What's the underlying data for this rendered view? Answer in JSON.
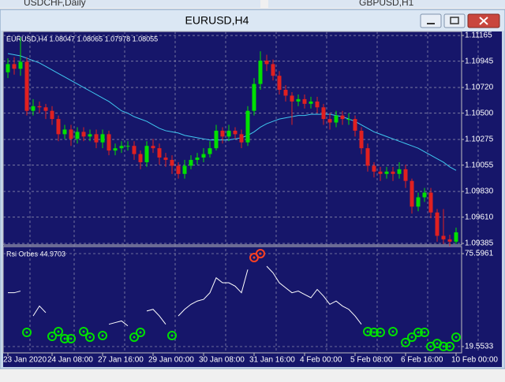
{
  "background_tabs": [
    "USDCHF,Daily",
    "GBPUSD,H1"
  ],
  "window": {
    "title": "EURUSD,H4"
  },
  "chart_data": [
    {
      "type": "candlestick",
      "title": "EURUSD,H4  1.08047 1.08065 1.07978 1.08055",
      "categories": [
        "23 Jan 2020",
        null,
        null,
        null,
        null,
        null,
        null,
        "24 Jan 08:00",
        null,
        null,
        null,
        null,
        null,
        null,
        null,
        "27 Jan 16:00",
        null,
        null,
        null,
        null,
        null,
        null,
        null,
        "29 Jan 00:00",
        null,
        null,
        null,
        null,
        null,
        null,
        null,
        "30 Jan 08:00",
        null,
        null,
        null,
        null,
        null,
        null,
        null,
        "31 Jan 16:00",
        null,
        null,
        null,
        null,
        null,
        null,
        null,
        "4 Feb 00:00",
        null,
        null,
        null,
        null,
        null,
        null,
        null,
        "5 Feb 08:00",
        null,
        null,
        null,
        null,
        null,
        null,
        null,
        "6 Feb 16:00",
        null,
        null,
        null,
        null,
        null,
        null,
        null,
        "10 Feb 00:00"
      ],
      "open": [
        1.1085,
        1.1092,
        1.1088,
        1.1094,
        1.1052,
        1.1056,
        1.1055,
        1.1052,
        1.1045,
        1.1032,
        1.1036,
        1.1028,
        1.1034,
        1.103,
        1.1032,
        1.1025,
        1.1032,
        1.1018,
        1.102,
        1.1022,
        1.1022,
        1.1015,
        1.1008,
        1.1022,
        1.102,
        1.1012,
        1.101,
        1.1005,
        1.0998,
        1.1005,
        1.101,
        1.1012,
        1.1015,
        1.102,
        1.1035,
        1.103,
        1.1035,
        1.1032,
        1.1025,
        1.1052,
        1.1075,
        1.1095,
        1.1092,
        1.1082,
        1.107,
        1.1065,
        1.106,
        1.1062,
        1.1058,
        1.106,
        1.1055,
        1.1045,
        1.1042,
        1.1048,
        1.1045,
        1.1045,
        1.1035,
        1.102,
        1.1005,
        1.1,
        1.0998,
        1.1,
        1.0998,
        1.1002,
        1.0992,
        1.097,
        1.0978,
        1.0982,
        1.0965,
        1.0945,
        1.0942,
        1.094
      ],
      "high": [
        1.1097,
        1.1098,
        1.1115,
        1.1098,
        1.1062,
        1.106,
        1.1058,
        1.1056,
        1.1048,
        1.104,
        1.104,
        1.1038,
        1.1038,
        1.1036,
        1.1036,
        1.1036,
        1.1035,
        1.1024,
        1.1026,
        1.1026,
        1.1026,
        1.1018,
        1.1026,
        1.1028,
        1.1024,
        1.1016,
        1.1014,
        1.1008,
        1.101,
        1.1014,
        1.1016,
        1.102,
        1.1026,
        1.104,
        1.1038,
        1.104,
        1.1038,
        1.1036,
        1.1056,
        1.108,
        1.1103,
        1.11,
        1.1096,
        1.1086,
        1.1074,
        1.1068,
        1.1066,
        1.1066,
        1.1064,
        1.1064,
        1.1058,
        1.105,
        1.1052,
        1.1052,
        1.105,
        1.1048,
        1.1038,
        1.1024,
        1.1008,
        1.1004,
        1.1004,
        1.1004,
        1.1008,
        1.1006,
        1.0994,
        1.0982,
        1.0986,
        1.0986,
        1.0968,
        1.0968,
        1.0946,
        1.0952
      ],
      "low": [
        1.108,
        1.1083,
        1.1082,
        1.1048,
        1.1048,
        1.105,
        1.1045,
        1.104,
        1.1026,
        1.1028,
        1.1022,
        1.1024,
        1.1026,
        1.1026,
        1.102,
        1.102,
        1.1014,
        1.1014,
        1.1016,
        1.1018,
        1.101,
        1.1002,
        1.1004,
        1.1016,
        1.1006,
        1.1004,
        1.0998,
        1.0994,
        1.0994,
        1.1002,
        1.1006,
        1.1008,
        1.1012,
        1.1018,
        1.1024,
        1.1026,
        1.1028,
        1.102,
        1.1022,
        1.1048,
        1.107,
        1.1086,
        1.1078,
        1.1066,
        1.106,
        1.104,
        1.1056,
        1.1054,
        1.1054,
        1.105,
        1.104,
        1.1036,
        1.1038,
        1.104,
        1.104,
        1.103,
        1.1015,
        1.1,
        1.0995,
        1.0992,
        1.0994,
        1.0992,
        1.0994,
        1.0986,
        1.0964,
        1.0966,
        1.0974,
        1.096,
        1.094,
        1.0938,
        1.0936,
        1.0938
      ],
      "close": [
        1.1092,
        1.1088,
        1.1094,
        1.1052,
        1.1056,
        1.1055,
        1.1052,
        1.1045,
        1.1032,
        1.1036,
        1.1028,
        1.1034,
        1.103,
        1.1032,
        1.1025,
        1.1032,
        1.1018,
        1.102,
        1.1022,
        1.1022,
        1.1015,
        1.1008,
        1.1022,
        1.102,
        1.1012,
        1.101,
        1.1005,
        1.0998,
        1.1005,
        1.101,
        1.1012,
        1.1015,
        1.102,
        1.1035,
        1.103,
        1.1035,
        1.1032,
        1.1025,
        1.1052,
        1.1075,
        1.1095,
        1.1092,
        1.1082,
        1.107,
        1.1065,
        1.106,
        1.1062,
        1.1058,
        1.106,
        1.1055,
        1.1045,
        1.1042,
        1.1048,
        1.1045,
        1.1045,
        1.1035,
        1.102,
        1.1005,
        1.1,
        1.0998,
        1.1,
        1.0998,
        1.1002,
        1.0992,
        1.097,
        1.0978,
        1.0982,
        1.0965,
        1.0945,
        1.0942,
        1.094,
        1.0948
      ],
      "up_color": "#00e000",
      "down_color": "#e02020",
      "series": [
        {
          "color": "#40c8f0",
          "values": [
            1.1101,
            1.11,
            1.1099,
            1.1097,
            1.1095,
            1.1093,
            1.109,
            1.1087,
            1.1084,
            1.1081,
            1.1078,
            1.1075,
            1.1072,
            1.1069,
            1.1066,
            1.1063,
            1.106,
            1.1056,
            1.1052,
            1.105,
            1.1047,
            1.1045,
            1.1043,
            1.104,
            1.1037,
            1.1035,
            1.1034,
            1.1033,
            1.1031,
            1.103,
            1.1029,
            1.1028,
            1.1027,
            1.1027,
            1.1027,
            1.1027,
            1.1028,
            1.1029,
            1.1031,
            1.1034,
            1.1038,
            1.1041,
            1.1043,
            1.1045,
            1.1046,
            1.1047,
            1.1048,
            1.1048,
            1.1049,
            1.1049,
            1.1049,
            1.1049,
            1.1048,
            1.1047,
            1.1045,
            1.1043,
            1.104,
            1.1037,
            1.1034,
            1.1032,
            1.103,
            1.1028,
            1.1026,
            1.1024,
            1.1022,
            1.102,
            1.1017,
            1.1014,
            1.1011,
            1.1008,
            1.1004,
            1.1001
          ]
        }
      ],
      "ylim": [
        1.09372,
        1.11199
      ],
      "yticks": [
        1.11165,
        1.10945,
        {
          "value": 1.1072,
          "label": "1.10720"
        },
        {
          "value": 1.105,
          "label": "1.10500"
        },
        1.10275,
        1.10055,
        {
          "value": 1.0983,
          "label": "1.09830"
        },
        {
          "value": 1.0961,
          "label": "1.09610"
        },
        1.09385
      ],
      "grid": true
    },
    {
      "type": "line",
      "title": "Rsi Orbes 44.9703",
      "series": [
        {
          "color": "#ffffff",
          "values": [
            52,
            52,
            53,
            null,
            38,
            44,
            40,
            null,
            null,
            null,
            null,
            34,
            null,
            null,
            33,
            null,
            33,
            34,
            35,
            32,
            null,
            null,
            41,
            42,
            38,
            33,
            null,
            38,
            42,
            45,
            47,
            48,
            52,
            61,
            58,
            58,
            56,
            52,
            66,
            null,
            null,
            68,
            64,
            58,
            55,
            52,
            53,
            51,
            49,
            54,
            50,
            45,
            47,
            44,
            42,
            38,
            33,
            null,
            null,
            null,
            30,
            null,
            31,
            null,
            null,
            null,
            null,
            null,
            null,
            null,
            null,
            null
          ]
        },
        {
          "color": "#00e000",
          "marker": "circle",
          "values": [
            null,
            null,
            null,
            28.1,
            null,
            null,
            null,
            25.7,
            28.6,
            24.3,
            24.3,
            null,
            28.6,
            25.2,
            null,
            26.2,
            null,
            null,
            null,
            null,
            25.2,
            28.1,
            null,
            null,
            null,
            null,
            26.2,
            null,
            null,
            null,
            null,
            null,
            null,
            null,
            null,
            null,
            null,
            null,
            null,
            null,
            null,
            null,
            null,
            null,
            null,
            null,
            null,
            null,
            null,
            null,
            null,
            null,
            null,
            null,
            null,
            null,
            null,
            28.6,
            28.1,
            28.1,
            null,
            28.6,
            null,
            22.0,
            25.2,
            28.1,
            28.1,
            19.6,
            21.4,
            19.6,
            19.6,
            25.2
          ]
        },
        {
          "color": "#ff4020",
          "marker": "circle",
          "values": [
            null,
            null,
            null,
            null,
            null,
            null,
            null,
            null,
            null,
            null,
            null,
            null,
            null,
            null,
            null,
            null,
            null,
            null,
            null,
            null,
            null,
            null,
            null,
            null,
            null,
            null,
            null,
            null,
            null,
            null,
            null,
            null,
            null,
            null,
            null,
            null,
            null,
            null,
            null,
            73.2,
            75.6,
            null,
            null,
            null,
            null,
            null,
            null,
            null,
            null,
            null,
            null,
            null,
            null,
            null,
            null,
            null,
            null,
            null,
            null,
            null,
            null,
            null,
            null,
            null,
            null,
            null,
            null,
            null,
            null,
            null,
            null,
            null
          ]
        }
      ],
      "ylim": [
        15.75,
        79.87
      ],
      "yticks": [
        75.5961,
        19.5533
      ]
    }
  ]
}
